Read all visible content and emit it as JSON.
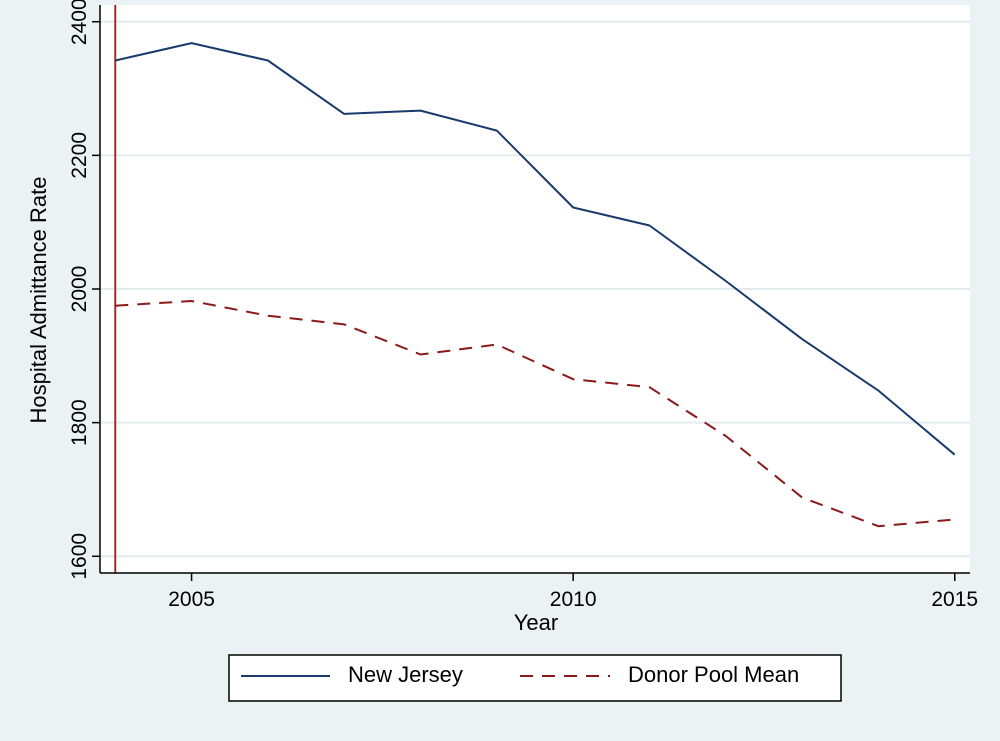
{
  "chart_data": {
    "type": "line",
    "title": "",
    "xlabel": "Year",
    "ylabel": "Hospital Admittance Rate",
    "x": [
      2004,
      2005,
      2006,
      2007,
      2008,
      2009,
      2010,
      2011,
      2012,
      2013,
      2014,
      2015
    ],
    "xlim": [
      2003.8,
      2015.2
    ],
    "ylim": [
      1575,
      2425
    ],
    "xticks": [
      2005,
      2010,
      2015
    ],
    "yticks": [
      1600,
      1800,
      2000,
      2200,
      2400
    ],
    "xtick_labels": [
      "2005",
      "2010",
      "2015"
    ],
    "ytick_labels": [
      "1600",
      "1800",
      "2000",
      "2200",
      "2400"
    ],
    "grid": "horizontal",
    "legend_position": "bottom",
    "vertical_marker": {
      "x": 2004,
      "color": "#a52a2a"
    },
    "series": [
      {
        "name": "New Jersey",
        "color": "#1a3a6b",
        "style": "solid",
        "values": [
          2342,
          2368,
          2342,
          2262,
          2267,
          2237,
          2122,
          2095,
          2012,
          1925,
          1848,
          1752
        ]
      },
      {
        "name": "Donor Pool Mean",
        "color": "#8b1a1a",
        "style": "dashed",
        "values": [
          1975,
          1982,
          1960,
          1947,
          1902,
          1917,
          1865,
          1853,
          1780,
          1688,
          1645,
          1655
        ]
      }
    ]
  }
}
